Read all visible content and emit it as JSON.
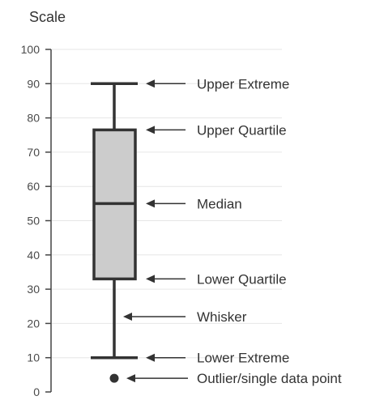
{
  "chart_data": {
    "type": "box",
    "title": "Scale",
    "ylim": [
      0,
      100
    ],
    "yticks": [
      0,
      10,
      20,
      30,
      40,
      50,
      60,
      70,
      80,
      90,
      100
    ],
    "grid": true,
    "box": {
      "upper_extreme": 90,
      "upper_quartile": 76.5,
      "median": 55,
      "lower_quartile": 33,
      "lower_extreme": 10,
      "outlier": 4
    },
    "annotations": [
      {
        "label": "Upper Extreme",
        "value": 90
      },
      {
        "label": "Upper Quartile",
        "value": 76.5
      },
      {
        "label": "Median",
        "value": 55
      },
      {
        "label": "Lower Quartile",
        "value": 33
      },
      {
        "label": "Whisker",
        "value": 22
      },
      {
        "label": "Lower Extreme",
        "value": 10
      },
      {
        "label": "Outlier/single data point",
        "value": 4
      }
    ],
    "colors": {
      "box_fill": "#cccccc",
      "stroke": "#333333",
      "grid": "#e6e6e6",
      "axis": "#444444"
    }
  }
}
